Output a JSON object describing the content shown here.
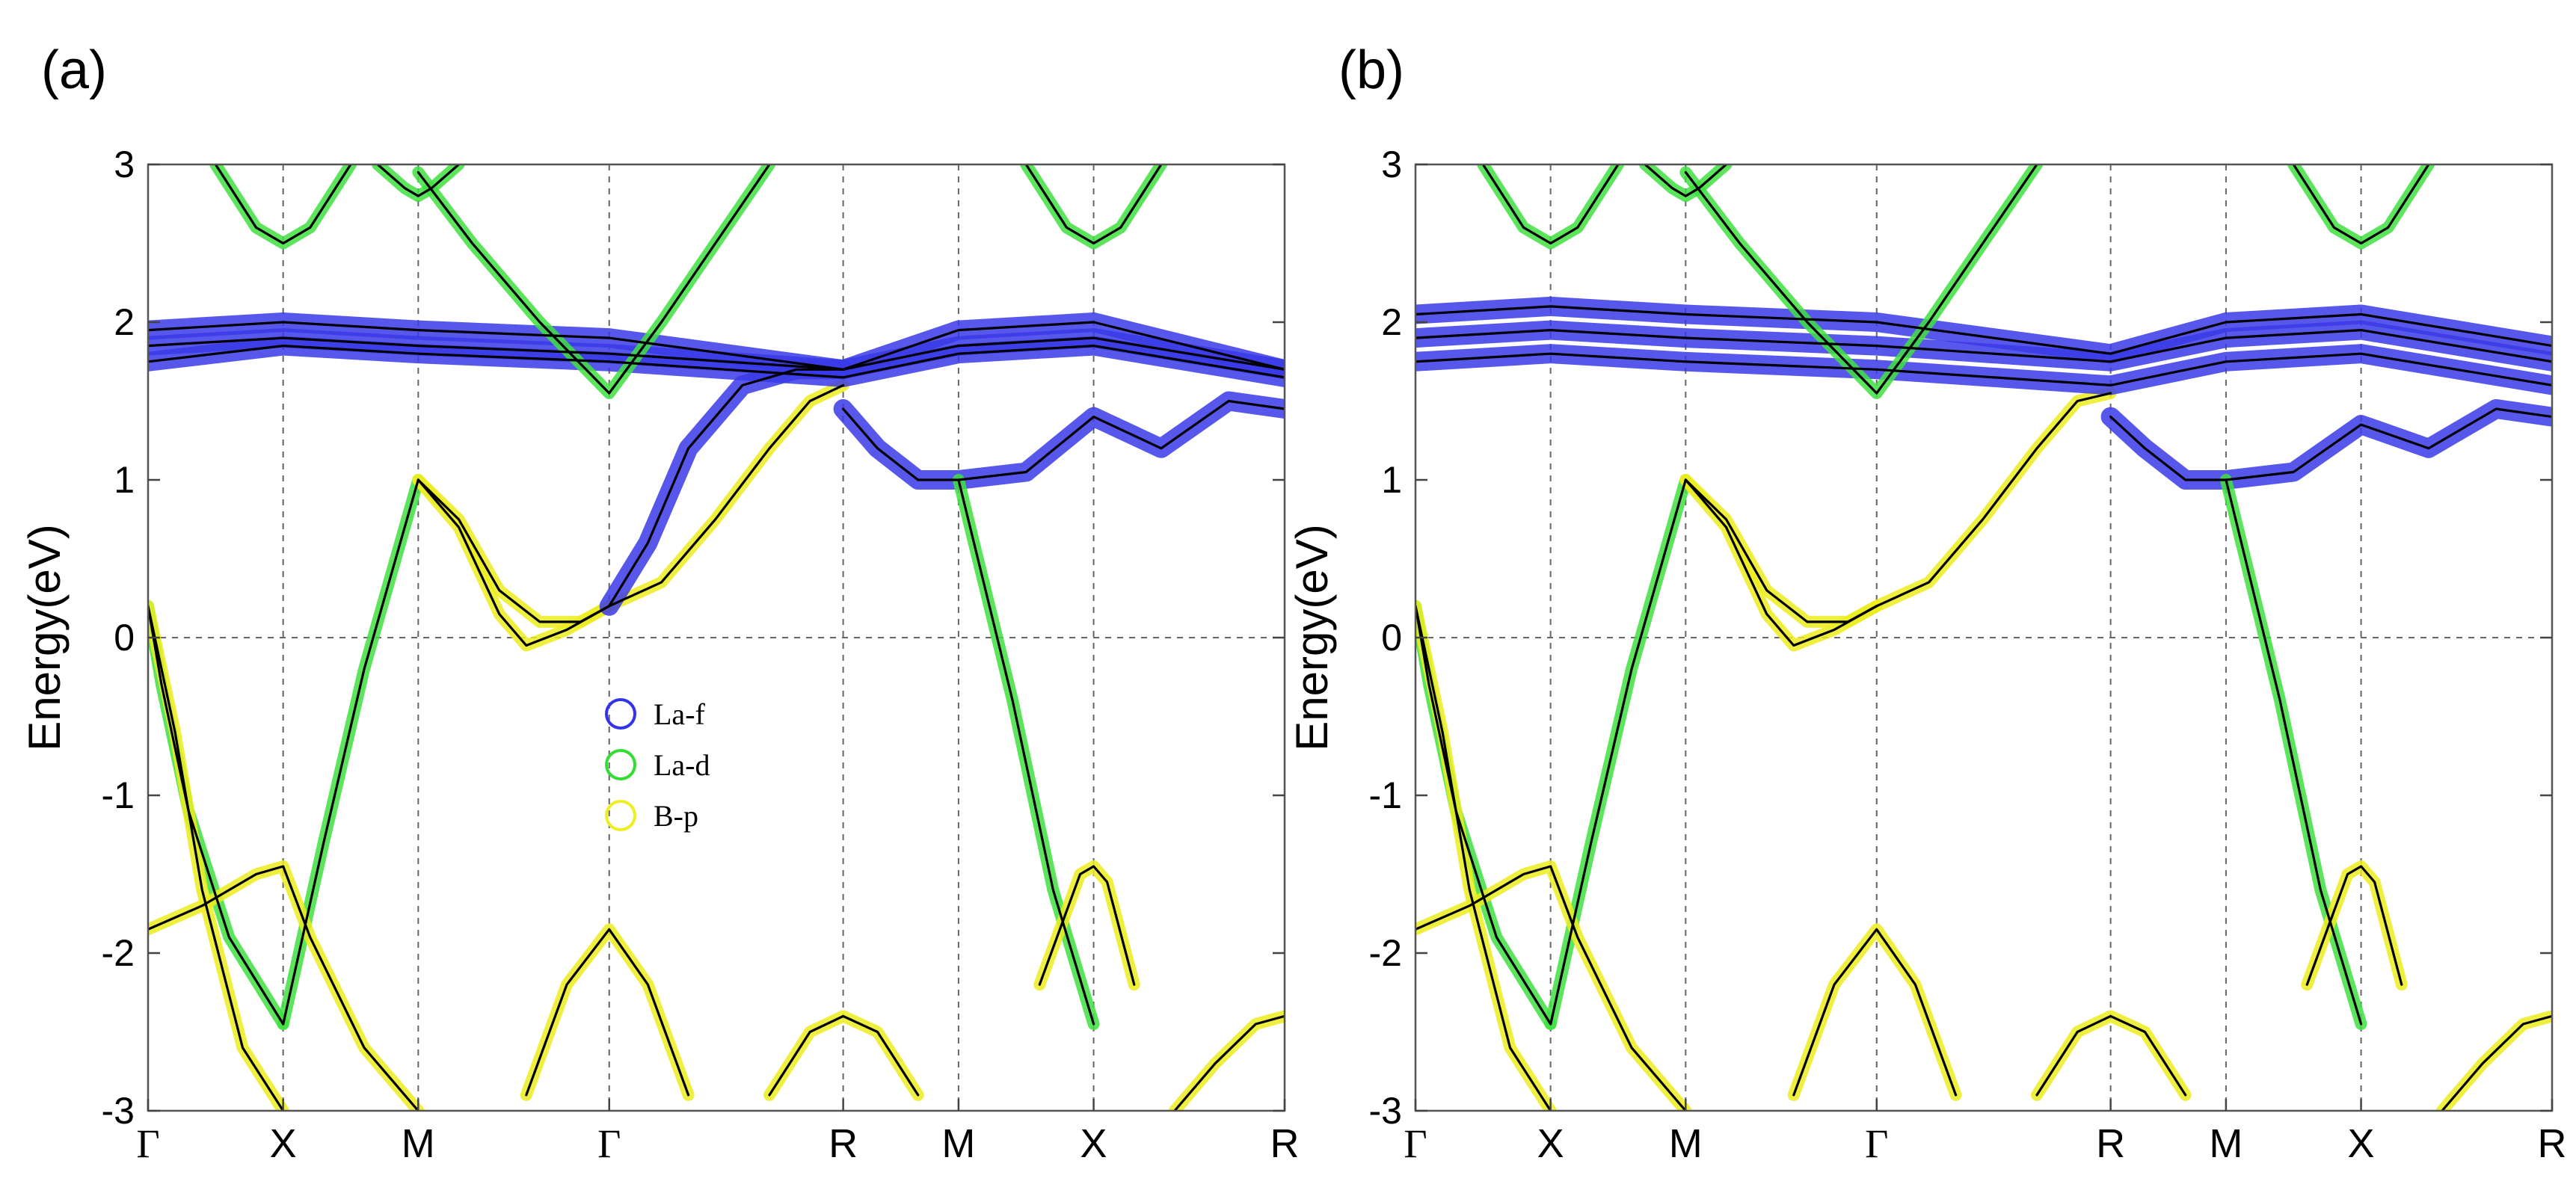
{
  "chart_data": [
    {
      "type": "line",
      "panel_label": "(a)",
      "ylabel": "Energy(eV)",
      "xlabel": "",
      "ylim": [
        -3,
        3
      ],
      "yticks": [
        3,
        2,
        1,
        0,
        -1,
        -2,
        -3
      ],
      "kpoints": [
        {
          "label": "Γ",
          "x": 0
        },
        {
          "label": "X",
          "x": 0.5
        },
        {
          "label": "M",
          "x": 1.0
        },
        {
          "label": "Γ",
          "x": 1.707
        },
        {
          "label": "R",
          "x": 2.573
        },
        {
          "label": "M",
          "x": 3.0
        },
        {
          "label": "X",
          "x": 3.5
        },
        {
          "label": "R",
          "x": 4.207
        }
      ],
      "xlim": [
        0,
        4.207
      ],
      "grid": "dashed at k-points and E=0",
      "legend": {
        "placement": "center",
        "entries": [
          {
            "label": "La-f",
            "color": "#3333ee"
          },
          {
            "label": "La-d",
            "color": "#33dd33"
          },
          {
            "label": "B-p",
            "color": "#eeee22"
          }
        ]
      },
      "series": [
        {
          "name": "fermi-crossing-1",
          "character": "La-d",
          "x": [
            0,
            0.05,
            0.15,
            0.3,
            0.5
          ],
          "y": [
            0.2,
            -0.3,
            -1.1,
            -1.9,
            -2.45
          ]
        },
        {
          "name": "fermi-crossing-2",
          "character": "La-d",
          "x": [
            0.5,
            0.65,
            0.8,
            1.0
          ],
          "y": [
            -2.45,
            -1.3,
            -0.2,
            1.0
          ]
        },
        {
          "name": "fermi-crossing-3",
          "character": "B-p",
          "x": [
            0,
            0.1,
            0.2,
            0.35,
            0.5
          ],
          "y": [
            0.2,
            -0.6,
            -1.6,
            -2.6,
            -3.0
          ]
        },
        {
          "name": "valence-X",
          "character": "B-p",
          "x": [
            0,
            0.2,
            0.4,
            0.5,
            0.6,
            0.8,
            1.0
          ],
          "y": [
            -1.85,
            -1.7,
            -1.5,
            -1.45,
            -1.9,
            -2.6,
            -3.0
          ]
        },
        {
          "name": "band-M-gamma-low",
          "character": "B-p",
          "x": [
            1.0,
            1.15,
            1.3,
            1.4,
            1.55,
            1.707
          ],
          "y": [
            1.0,
            0.7,
            0.15,
            -0.05,
            0.05,
            0.2
          ]
        },
        {
          "name": "band-M-gamma-low2",
          "character": "B-p",
          "x": [
            1.0,
            1.15,
            1.3,
            1.45,
            1.6,
            1.707
          ],
          "y": [
            1.0,
            0.75,
            0.3,
            0.1,
            0.1,
            0.2
          ]
        },
        {
          "name": "band-gamma-R-1",
          "character": "B-p",
          "x": [
            1.707,
            1.9,
            2.1,
            2.3,
            2.45,
            2.573
          ],
          "y": [
            0.2,
            0.35,
            0.75,
            1.2,
            1.5,
            1.6
          ]
        },
        {
          "name": "band-gamma-R-2",
          "character": "La-f",
          "x": [
            1.707,
            1.85,
            2.0,
            2.2,
            2.4,
            2.573
          ],
          "y": [
            0.2,
            0.6,
            1.2,
            1.6,
            1.7,
            1.7
          ]
        },
        {
          "name": "flat-f-1",
          "character": "La-f",
          "x": [
            0,
            0.5,
            1.0,
            1.707,
            2.573,
            3.0,
            3.5,
            4.207
          ],
          "y": [
            1.95,
            2.0,
            1.95,
            1.9,
            1.7,
            1.95,
            2.0,
            1.7
          ]
        },
        {
          "name": "flat-f-2",
          "character": "La-f",
          "x": [
            0,
            0.5,
            1.0,
            1.707,
            2.573,
            3.0,
            3.5,
            4.207
          ],
          "y": [
            1.85,
            1.9,
            1.85,
            1.8,
            1.7,
            1.85,
            1.9,
            1.7
          ]
        },
        {
          "name": "flat-f-3",
          "character": "La-f",
          "x": [
            0,
            0.5,
            1.0,
            1.707,
            2.573,
            3.0,
            3.5,
            4.207
          ],
          "y": [
            1.75,
            1.85,
            1.8,
            1.75,
            1.65,
            1.8,
            1.85,
            1.65
          ]
        },
        {
          "name": "band-R-M",
          "character": "La-f",
          "x": [
            2.573,
            2.7,
            2.85,
            3.0,
            3.25,
            3.5,
            3.75,
            4.0,
            4.207
          ],
          "y": [
            1.45,
            1.2,
            1.0,
            1.0,
            1.05,
            1.4,
            1.2,
            1.5,
            1.45
          ]
        },
        {
          "name": "fermi-crossing-MX",
          "character": "La-d",
          "x": [
            3.0,
            3.2,
            3.35,
            3.5
          ],
          "y": [
            1.0,
            -0.4,
            -1.6,
            -2.45
          ]
        },
        {
          "name": "valence-MX",
          "character": "B-p",
          "x": [
            3.3,
            3.45,
            3.5,
            3.55,
            3.65
          ],
          "y": [
            -2.2,
            -1.5,
            -1.45,
            -1.55,
            -2.2
          ]
        },
        {
          "name": "valence-R",
          "character": "B-p",
          "x": [
            2.3,
            2.45,
            2.573,
            2.7,
            2.85
          ],
          "y": [
            -2.9,
            -2.5,
            -2.4,
            -2.5,
            -2.9
          ]
        },
        {
          "name": "valence-R-end",
          "character": "B-p",
          "x": [
            3.8,
            3.95,
            4.1,
            4.207
          ],
          "y": [
            -3.0,
            -2.7,
            -2.45,
            -2.4
          ]
        },
        {
          "name": "valence-gamma",
          "character": "B-p",
          "x": [
            1.4,
            1.55,
            1.707,
            1.85,
            2.0
          ],
          "y": [
            -2.9,
            -2.2,
            -1.85,
            -2.2,
            -2.9
          ]
        },
        {
          "name": "upper-gamma-1",
          "character": "La-d",
          "x": [
            1.0,
            1.2,
            1.45,
            1.707,
            1.9,
            2.1,
            2.3
          ],
          "y": [
            2.95,
            2.5,
            2.0,
            1.55,
            2.0,
            2.5,
            3.0
          ]
        },
        {
          "name": "upper-X",
          "character": "La-d",
          "x": [
            0.25,
            0.4,
            0.5,
            0.6,
            0.75
          ],
          "y": [
            3.0,
            2.6,
            2.5,
            2.6,
            3.0
          ]
        },
        {
          "name": "upper-X2",
          "character": "La-d",
          "x": [
            3.25,
            3.4,
            3.5,
            3.6,
            3.75
          ],
          "y": [
            3.0,
            2.6,
            2.5,
            2.6,
            3.0
          ]
        },
        {
          "name": "upper-M",
          "character": "La-d",
          "x": [
            0.85,
            0.95,
            1.0,
            1.05,
            1.15
          ],
          "y": [
            3.0,
            2.85,
            2.8,
            2.85,
            3.0
          ]
        }
      ]
    },
    {
      "type": "line",
      "panel_label": "(b)",
      "ylabel": "Energy(eV)",
      "xlabel": "",
      "ylim": [
        -3,
        3
      ],
      "yticks": [
        3,
        2,
        1,
        0,
        -1,
        -2,
        -3
      ],
      "kpoints": [
        {
          "label": "Γ",
          "x": 0
        },
        {
          "label": "X",
          "x": 0.5
        },
        {
          "label": "M",
          "x": 1.0
        },
        {
          "label": "Γ",
          "x": 1.707
        },
        {
          "label": "R",
          "x": 2.573
        },
        {
          "label": "M",
          "x": 3.0
        },
        {
          "label": "X",
          "x": 3.5
        },
        {
          "label": "R",
          "x": 4.207
        }
      ],
      "xlim": [
        0,
        4.207
      ],
      "grid": "dashed at k-points and E=0",
      "series": [
        {
          "name": "fermi-crossing-1",
          "character": "La-d",
          "x": [
            0,
            0.05,
            0.15,
            0.3,
            0.5
          ],
          "y": [
            0.2,
            -0.3,
            -1.1,
            -1.9,
            -2.45
          ]
        },
        {
          "name": "fermi-crossing-2",
          "character": "La-d",
          "x": [
            0.5,
            0.65,
            0.8,
            1.0
          ],
          "y": [
            -2.45,
            -1.3,
            -0.2,
            1.0
          ]
        },
        {
          "name": "fermi-crossing-3",
          "character": "B-p",
          "x": [
            0,
            0.1,
            0.2,
            0.35,
            0.5
          ],
          "y": [
            0.2,
            -0.6,
            -1.6,
            -2.6,
            -3.0
          ]
        },
        {
          "name": "valence-X",
          "character": "B-p",
          "x": [
            0,
            0.2,
            0.4,
            0.5,
            0.6,
            0.8,
            1.0
          ],
          "y": [
            -1.85,
            -1.7,
            -1.5,
            -1.45,
            -1.9,
            -2.6,
            -3.0
          ]
        },
        {
          "name": "band-M-gamma-low",
          "character": "B-p",
          "x": [
            1.0,
            1.15,
            1.3,
            1.4,
            1.55,
            1.707
          ],
          "y": [
            1.0,
            0.7,
            0.15,
            -0.05,
            0.05,
            0.2
          ]
        },
        {
          "name": "band-M-gamma-low2",
          "character": "B-p",
          "x": [
            1.0,
            1.15,
            1.3,
            1.45,
            1.6,
            1.707
          ],
          "y": [
            1.0,
            0.75,
            0.3,
            0.1,
            0.1,
            0.2
          ]
        },
        {
          "name": "band-gamma-R-1",
          "character": "B-p",
          "x": [
            1.707,
            1.9,
            2.1,
            2.3,
            2.45,
            2.573
          ],
          "y": [
            0.2,
            0.35,
            0.75,
            1.2,
            1.5,
            1.55
          ]
        },
        {
          "name": "flat-f-1",
          "character": "La-f",
          "x": [
            0,
            0.5,
            1.0,
            1.707,
            2.573,
            3.0,
            3.5,
            4.207
          ],
          "y": [
            2.05,
            2.1,
            2.05,
            2.0,
            1.8,
            2.0,
            2.05,
            1.85
          ]
        },
        {
          "name": "flat-f-2",
          "character": "La-f",
          "x": [
            0,
            0.5,
            1.0,
            1.707,
            2.573,
            3.0,
            3.5,
            4.207
          ],
          "y": [
            1.9,
            1.95,
            1.9,
            1.85,
            1.75,
            1.9,
            1.95,
            1.75
          ]
        },
        {
          "name": "flat-f-3",
          "character": "La-f",
          "x": [
            0,
            0.5,
            1.0,
            1.707,
            2.573,
            3.0,
            3.5,
            4.207
          ],
          "y": [
            1.75,
            1.8,
            1.75,
            1.7,
            1.6,
            1.75,
            1.8,
            1.6
          ]
        },
        {
          "name": "band-R-M",
          "character": "La-f",
          "x": [
            2.573,
            2.7,
            2.85,
            3.0,
            3.25,
            3.5,
            3.75,
            4.0,
            4.207
          ],
          "y": [
            1.4,
            1.2,
            1.0,
            1.0,
            1.05,
            1.35,
            1.2,
            1.45,
            1.4
          ]
        },
        {
          "name": "fermi-crossing-MX",
          "character": "La-d",
          "x": [
            3.0,
            3.2,
            3.35,
            3.5
          ],
          "y": [
            1.0,
            -0.4,
            -1.6,
            -2.45
          ]
        },
        {
          "name": "valence-MX",
          "character": "B-p",
          "x": [
            3.3,
            3.45,
            3.5,
            3.55,
            3.65
          ],
          "y": [
            -2.2,
            -1.5,
            -1.45,
            -1.55,
            -2.2
          ]
        },
        {
          "name": "valence-R",
          "character": "B-p",
          "x": [
            2.3,
            2.45,
            2.573,
            2.7,
            2.85
          ],
          "y": [
            -2.9,
            -2.5,
            -2.4,
            -2.5,
            -2.9
          ]
        },
        {
          "name": "valence-R-end",
          "character": "B-p",
          "x": [
            3.8,
            3.95,
            4.1,
            4.207
          ],
          "y": [
            -3.0,
            -2.7,
            -2.45,
            -2.4
          ]
        },
        {
          "name": "valence-gamma",
          "character": "B-p",
          "x": [
            1.4,
            1.55,
            1.707,
            1.85,
            2.0
          ],
          "y": [
            -2.9,
            -2.2,
            -1.85,
            -2.2,
            -2.9
          ]
        },
        {
          "name": "upper-gamma-1",
          "character": "La-d",
          "x": [
            1.0,
            1.2,
            1.45,
            1.707,
            1.9,
            2.1,
            2.3
          ],
          "y": [
            2.95,
            2.5,
            2.0,
            1.55,
            2.0,
            2.5,
            3.0
          ]
        },
        {
          "name": "upper-X",
          "character": "La-d",
          "x": [
            0.25,
            0.4,
            0.5,
            0.6,
            0.75
          ],
          "y": [
            3.0,
            2.6,
            2.5,
            2.6,
            3.0
          ]
        },
        {
          "name": "upper-X2",
          "character": "La-d",
          "x": [
            3.25,
            3.4,
            3.5,
            3.6,
            3.75
          ],
          "y": [
            3.0,
            2.6,
            2.5,
            2.6,
            3.0
          ]
        },
        {
          "name": "upper-M",
          "character": "La-d",
          "x": [
            0.85,
            0.95,
            1.0,
            1.05,
            1.15
          ],
          "y": [
            3.0,
            2.85,
            2.8,
            2.85,
            3.0
          ]
        }
      ]
    }
  ]
}
